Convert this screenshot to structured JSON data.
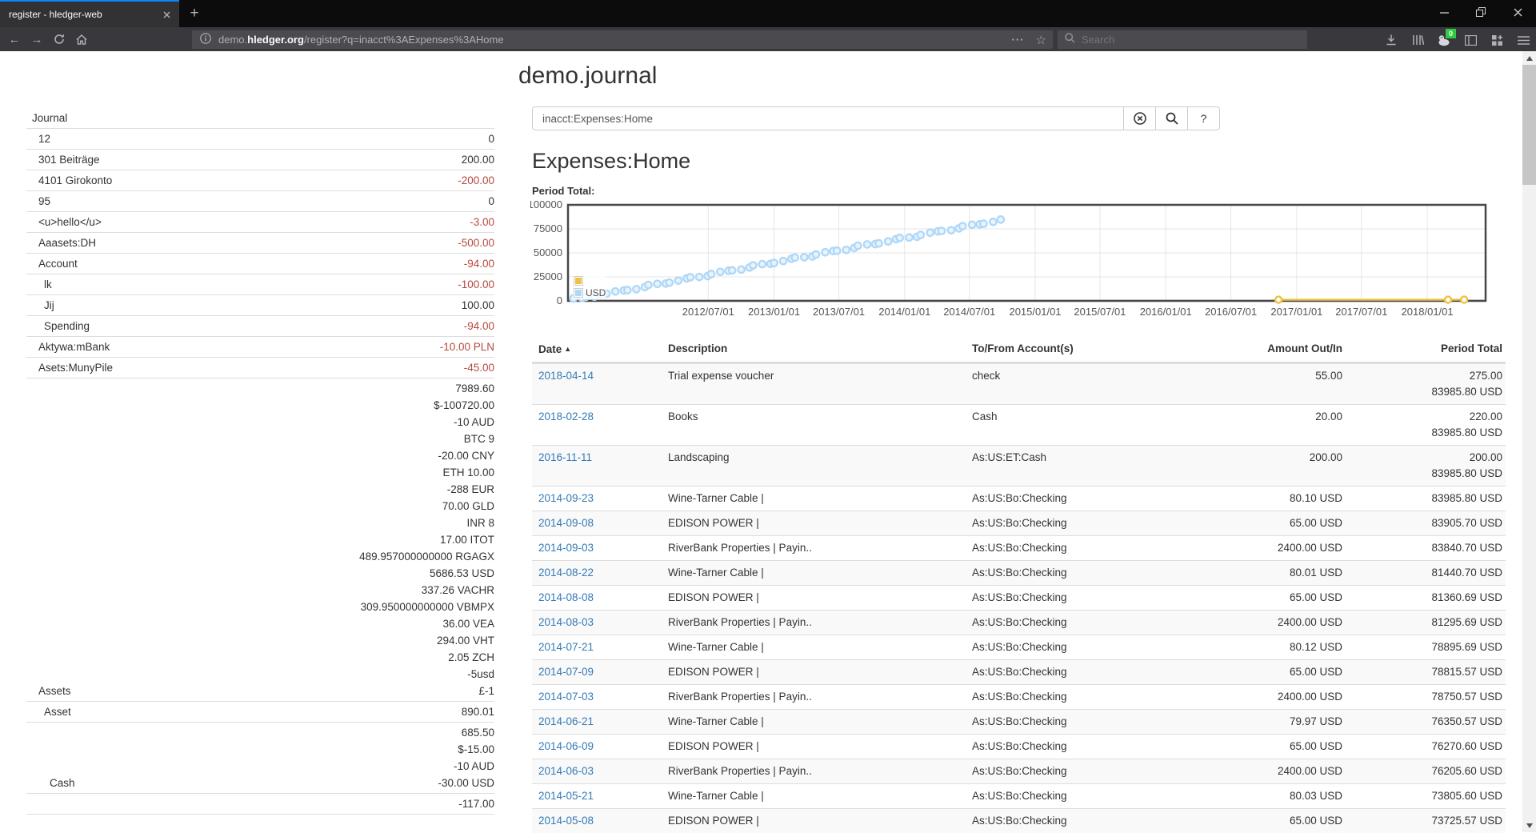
{
  "browser": {
    "tab_title": "register - hledger-web",
    "url": {
      "pre": "demo.",
      "domain": "hledger.org",
      "path": "/register?q=inacct%3AExpenses%3AHome"
    },
    "search_placeholder": "Search",
    "extension_badge": "0"
  },
  "page": {
    "title": "demo.journal",
    "search_value": "inacct:Expenses:Home",
    "help_label": "?",
    "heading": "Expenses:Home",
    "chart_label": "Period Total:"
  },
  "sidebar": {
    "title": "Journal",
    "rows": [
      {
        "label": "12",
        "indent": 1,
        "amounts": [
          {
            "t": "0"
          }
        ]
      },
      {
        "label": "301 Beiträge",
        "indent": 1,
        "amounts": [
          {
            "t": "200.00"
          }
        ]
      },
      {
        "label": "4101 Girokonto",
        "indent": 1,
        "amounts": [
          {
            "t": "-200.00",
            "neg": true
          }
        ]
      },
      {
        "label": "95",
        "indent": 1,
        "amounts": [
          {
            "t": "0"
          }
        ]
      },
      {
        "label": "<u>hello</u>",
        "indent": 1,
        "amounts": [
          {
            "t": "-3.00",
            "neg": true
          }
        ]
      },
      {
        "label": "Aaasets:DH",
        "indent": 1,
        "amounts": [
          {
            "t": "-500.00",
            "neg": true
          }
        ]
      },
      {
        "label": "Account",
        "indent": 1,
        "amounts": [
          {
            "t": "-94.00",
            "neg": true
          }
        ]
      },
      {
        "label": "lk",
        "indent": 2,
        "amounts": [
          {
            "t": "-100.00",
            "neg": true
          }
        ]
      },
      {
        "label": "Jij",
        "indent": 2,
        "amounts": [
          {
            "t": "100.00"
          }
        ]
      },
      {
        "label": "Spending",
        "indent": 2,
        "amounts": [
          {
            "t": "-94.00",
            "neg": true
          }
        ]
      },
      {
        "label": "Aktywa:mBank",
        "indent": 1,
        "amounts": [
          {
            "t": "-10.00 PLN",
            "neg": true
          }
        ]
      },
      {
        "label": "Asets:MunyPile",
        "indent": 1,
        "amounts": [
          {
            "t": "-45.00",
            "neg": true
          }
        ]
      },
      {
        "label": "Assets",
        "indent": 1,
        "amounts": [
          {
            "t": "7989.60"
          },
          {
            "t": "$-100720.00"
          },
          {
            "t": "-10 AUD"
          },
          {
            "t": "BTC 9"
          },
          {
            "t": "-20.00 CNY"
          },
          {
            "t": "ETH 10.00"
          },
          {
            "t": "-288 EUR"
          },
          {
            "t": "70.00 GLD"
          },
          {
            "t": "INR 8"
          },
          {
            "t": "17.00 ITOT"
          },
          {
            "t": "489.957000000000 RGAGX"
          },
          {
            "t": "5686.53 USD"
          },
          {
            "t": "337.26 VACHR"
          },
          {
            "t": "309.950000000000 VBMPX"
          },
          {
            "t": "36.00 VEA"
          },
          {
            "t": "294.00 VHT"
          },
          {
            "t": "2.05 ZCH"
          },
          {
            "t": "-5usd"
          },
          {
            "t": "£-1"
          }
        ]
      },
      {
        "label": "Asset",
        "indent": 2,
        "amounts": [
          {
            "t": "890.01"
          }
        ]
      },
      {
        "label": "Cash",
        "indent": 3,
        "amounts": [
          {
            "t": "685.50"
          },
          {
            "t": "$-15.00"
          },
          {
            "t": "-10 AUD"
          },
          {
            "t": "-30.00 USD"
          }
        ]
      },
      {
        "label": "",
        "indent": 0,
        "amounts": [
          {
            "t": "-117.00"
          }
        ]
      }
    ]
  },
  "chart_data": {
    "type": "line",
    "title": "Period Total:",
    "ylim": [
      0,
      100000
    ],
    "y_ticks": [
      0,
      25000,
      50000,
      75000,
      100000
    ],
    "x_ticks": [
      "2012/07/01",
      "2013/01/01",
      "2013/07/01",
      "2014/01/01",
      "2014/07/01",
      "2015/01/01",
      "2015/07/01",
      "2016/01/01",
      "2016/07/01",
      "2017/01/01",
      "2017/07/01",
      "2018/01/01"
    ],
    "x_domain": [
      "2011-06-05",
      "2018-06-13"
    ],
    "grid": true,
    "legend_position": "bottom-left",
    "zero_line_color": "#f2c4c4",
    "series": [
      {
        "name": "",
        "color": "#edc240",
        "marker": "circle",
        "points": [
          [
            "2016-11-11",
            200
          ],
          [
            "2018-02-28",
            220
          ],
          [
            "2018-04-14",
            275
          ]
        ]
      },
      {
        "name": "USD",
        "color": "#afd8f8",
        "marker": "circle",
        "approx_trend": {
          "from": [
            "2011-06-20",
            800
          ],
          "to": [
            "2014-09-23",
            83985.8
          ],
          "count": 62
        }
      }
    ]
  },
  "register": {
    "columns": [
      "Date",
      "Description",
      "To/From Account(s)",
      "Amount Out/In",
      "Period Total"
    ],
    "sorted_by": "Date",
    "sort_dir": "asc",
    "rows": [
      {
        "date": "2018-04-14",
        "description": "Trial expense voucher",
        "account": "check",
        "amount": "55.00",
        "totals": [
          "275.00",
          "83985.80 USD"
        ]
      },
      {
        "date": "2018-02-28",
        "description": "Books",
        "account": "Cash",
        "amount": "20.00",
        "totals": [
          "220.00",
          "83985.80 USD"
        ]
      },
      {
        "date": "2016-11-11",
        "description": "Landscaping",
        "account": "As:US:ET:Cash",
        "amount": "200.00",
        "totals": [
          "200.00",
          "83985.80 USD"
        ]
      },
      {
        "date": "2014-09-23",
        "description": "Wine-Tarner Cable |",
        "account": "As:US:Bo:Checking",
        "amount": "80.10 USD",
        "totals": [
          "83985.80 USD"
        ]
      },
      {
        "date": "2014-09-08",
        "description": "EDISON POWER |",
        "account": "As:US:Bo:Checking",
        "amount": "65.00 USD",
        "totals": [
          "83905.70 USD"
        ]
      },
      {
        "date": "2014-09-03",
        "description": "RiverBank Properties | Payin..",
        "account": "As:US:Bo:Checking",
        "amount": "2400.00 USD",
        "totals": [
          "83840.70 USD"
        ]
      },
      {
        "date": "2014-08-22",
        "description": "Wine-Tarner Cable |",
        "account": "As:US:Bo:Checking",
        "amount": "80.01 USD",
        "totals": [
          "81440.70 USD"
        ]
      },
      {
        "date": "2014-08-08",
        "description": "EDISON POWER |",
        "account": "As:US:Bo:Checking",
        "amount": "65.00 USD",
        "totals": [
          "81360.69 USD"
        ]
      },
      {
        "date": "2014-08-03",
        "description": "RiverBank Properties | Payin..",
        "account": "As:US:Bo:Checking",
        "amount": "2400.00 USD",
        "totals": [
          "81295.69 USD"
        ]
      },
      {
        "date": "2014-07-21",
        "description": "Wine-Tarner Cable |",
        "account": "As:US:Bo:Checking",
        "amount": "80.12 USD",
        "totals": [
          "78895.69 USD"
        ]
      },
      {
        "date": "2014-07-09",
        "description": "EDISON POWER |",
        "account": "As:US:Bo:Checking",
        "amount": "65.00 USD",
        "totals": [
          "78815.57 USD"
        ]
      },
      {
        "date": "2014-07-03",
        "description": "RiverBank Properties | Payin..",
        "account": "As:US:Bo:Checking",
        "amount": "2400.00 USD",
        "totals": [
          "78750.57 USD"
        ]
      },
      {
        "date": "2014-06-21",
        "description": "Wine-Tarner Cable |",
        "account": "As:US:Bo:Checking",
        "amount": "79.97 USD",
        "totals": [
          "76350.57 USD"
        ]
      },
      {
        "date": "2014-06-09",
        "description": "EDISON POWER |",
        "account": "As:US:Bo:Checking",
        "amount": "65.00 USD",
        "totals": [
          "76270.60 USD"
        ]
      },
      {
        "date": "2014-06-03",
        "description": "RiverBank Properties | Payin..",
        "account": "As:US:Bo:Checking",
        "amount": "2400.00 USD",
        "totals": [
          "76205.60 USD"
        ]
      },
      {
        "date": "2014-05-21",
        "description": "Wine-Tarner Cable |",
        "account": "As:US:Bo:Checking",
        "amount": "80.03 USD",
        "totals": [
          "73805.60 USD"
        ]
      },
      {
        "date": "2014-05-08",
        "description": "EDISON POWER |",
        "account": "As:US:Bo:Checking",
        "amount": "65.00 USD",
        "totals": [
          "73725.57 USD"
        ]
      }
    ]
  }
}
